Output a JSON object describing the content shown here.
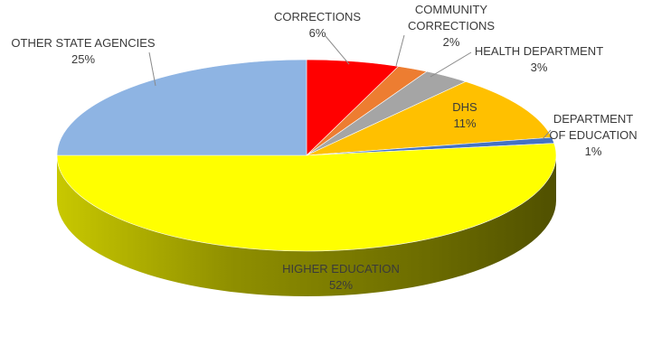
{
  "chart_data": {
    "type": "pie",
    "style": "3d",
    "start_angle_deg": 90,
    "direction": "clockwise",
    "slices": [
      {
        "label": "CORRECTIONS",
        "percent_label": "6%",
        "value": 6,
        "color": "#ff0000"
      },
      {
        "label": "COMMUNITY CORRECTIONS",
        "percent_label": "2%",
        "value": 2,
        "color": "#ed7d31"
      },
      {
        "label": "HEALTH DEPARTMENT",
        "percent_label": "3%",
        "value": 3,
        "color": "#a5a5a5"
      },
      {
        "label": "DHS",
        "percent_label": "11%",
        "value": 11,
        "color": "#ffc000"
      },
      {
        "label": "DEPARTMENT OF EDUCATION",
        "percent_label": "1%",
        "value": 1,
        "color": "#4472c4"
      },
      {
        "label": "HIGHER EDUCATION",
        "percent_label": "52%",
        "value": 52,
        "color": "#ffff00"
      },
      {
        "label": "OTHER STATE AGENCIES",
        "percent_label": "25%",
        "value": 25,
        "color": "#8eb4e3"
      }
    ],
    "label_lines": {
      "CORRECTIONS": [
        "CORRECTIONS",
        "6%"
      ],
      "COMMUNITY CORRECTIONS": [
        "COMMUNITY",
        "CORRECTIONS",
        "2%"
      ],
      "HEALTH DEPARTMENT": [
        "HEALTH DEPARTMENT",
        "3%"
      ],
      "DHS": [
        "DHS",
        "11%"
      ],
      "DEPARTMENT OF EDUCATION": [
        "DEPARTMENT",
        "OF EDUCATION",
        "1%"
      ],
      "HIGHER EDUCATION": [
        "HIGHER EDUCATION",
        "52%"
      ],
      "OTHER STATE AGENCIES": [
        "OTHER STATE AGENCIES",
        "25%"
      ]
    }
  }
}
